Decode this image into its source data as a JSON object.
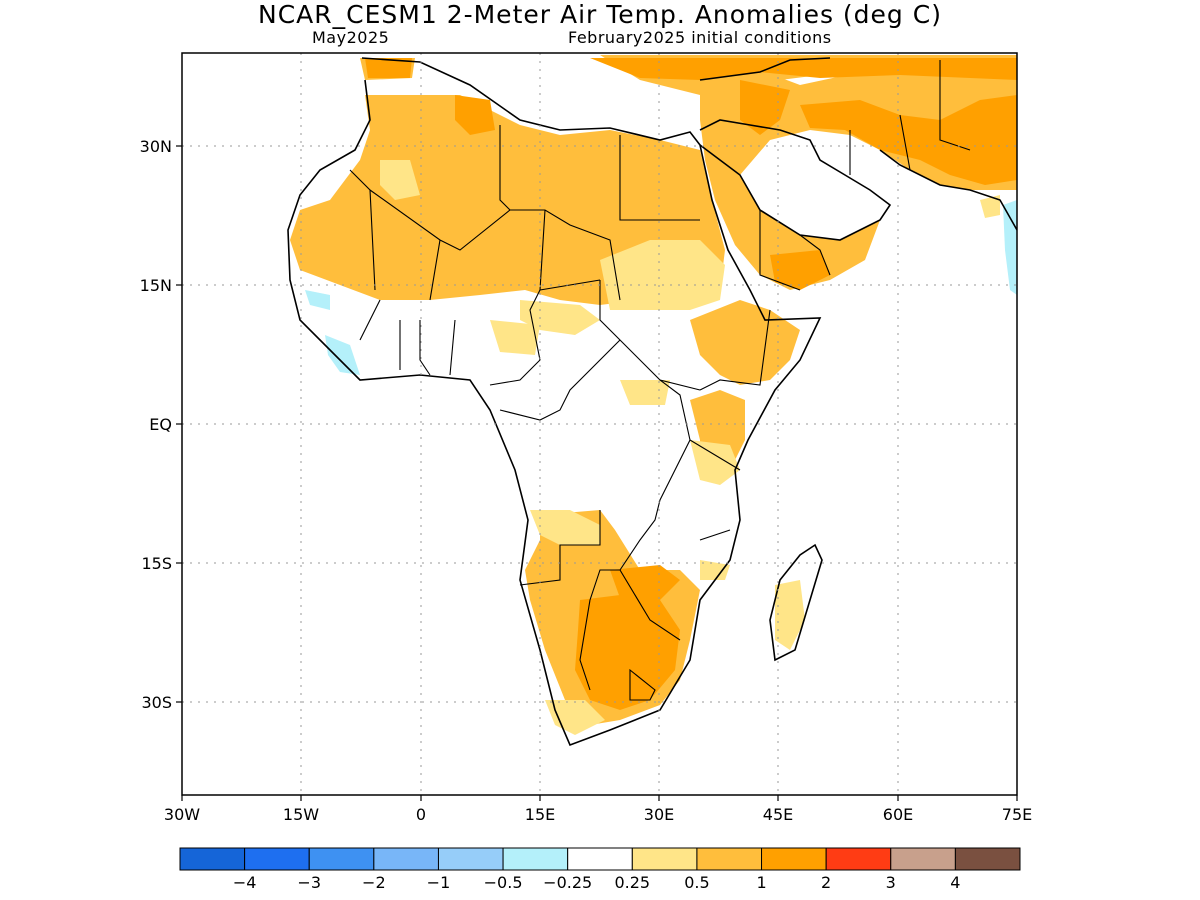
{
  "title": "NCAR_CESM1 2-Meter Air Temp. Anomalies (deg C)",
  "subtitle_left": "May2025",
  "subtitle_right": "February2025 initial conditions",
  "map": {
    "region": "Africa and Arabian Peninsula",
    "lon_range": [
      -30,
      75
    ],
    "lat_range": [
      -42,
      40
    ],
    "lat_ticks": [
      "30N",
      "15N",
      "EQ",
      "15S",
      "30S"
    ],
    "lon_ticks": [
      "30W",
      "15W",
      "0",
      "15E",
      "30E",
      "45E",
      "60E",
      "75E"
    ],
    "grid": "dotted"
  },
  "colorbar": {
    "colors": [
      "#1565d8",
      "#1e6ff0",
      "#3e91f2",
      "#78b6f8",
      "#96cdf9",
      "#b4f0fa",
      "#ffffff",
      "#ffe588",
      "#ffbe3c",
      "#ffa000",
      "#ff3c14",
      "#c8a08c",
      "#7a5040"
    ],
    "labels": [
      "−4",
      "−3",
      "−2",
      "−1",
      "−0.5",
      "−0.25",
      "0.25",
      "0.5",
      "1",
      "2",
      "3",
      "4"
    ]
  }
}
